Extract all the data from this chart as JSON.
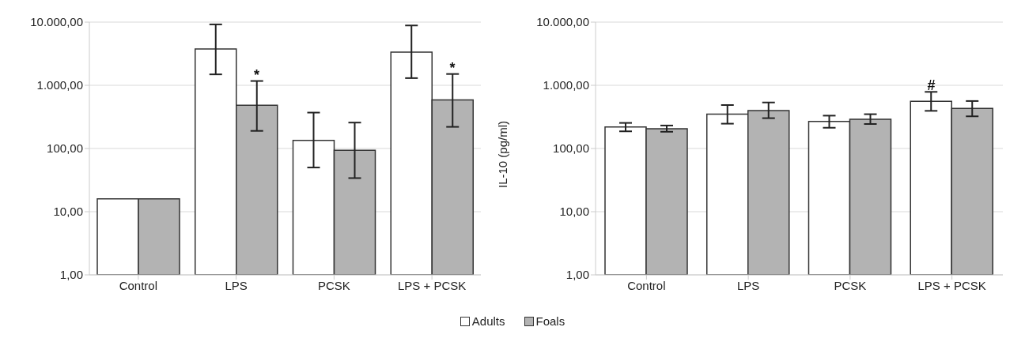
{
  "chart_data": [
    {
      "type": "bar",
      "categories": [
        "Control",
        "LPS",
        "PCSK",
        "LPS + PCSK"
      ],
      "log": "y",
      "grid": "y",
      "legend": "bottom",
      "ylim": [
        1,
        10000
      ],
      "yticks": [
        {
          "value": 1,
          "label": "1,00"
        },
        {
          "value": 10,
          "label": "10,00"
        },
        {
          "value": 100,
          "label": "100,00"
        },
        {
          "value": 1000,
          "label": "1.000,00"
        },
        {
          "value": 10000,
          "label": "10.000,00"
        }
      ],
      "series": [
        {
          "name": "Adults",
          "color": "#ffffff",
          "values": [
            16,
            3750,
            134,
            3360
          ],
          "errors": [
            null,
            [
              1490,
              9200
            ],
            [
              50,
              370
            ],
            [
              1300,
              8850
            ]
          ]
        },
        {
          "name": "Foals",
          "color": "#b3b3b3",
          "values": [
            16,
            483,
            94,
            587
          ],
          "errors": [
            null,
            [
              190,
              1170
            ],
            [
              34,
              257
            ],
            [
              220,
              1510
            ]
          ]
        }
      ],
      "annotations": [
        {
          "text": "*",
          "x": "LPS",
          "y": 483
        },
        {
          "text": "*",
          "x": "LPS + PCSK",
          "y": 587
        }
      ]
    },
    {
      "type": "bar",
      "categories": [
        "Control",
        "LPS",
        "PCSK",
        "LPS + PCSK"
      ],
      "log": "y",
      "grid": "y",
      "ylabel": "IL-10 (pg/ml)",
      "ylim": [
        1,
        10000
      ],
      "yticks": [
        {
          "value": 1,
          "label": "1,00"
        },
        {
          "value": 10,
          "label": "10,00"
        },
        {
          "value": 100,
          "label": "100,00"
        },
        {
          "value": 1000,
          "label": "1.000,00"
        },
        {
          "value": 10000,
          "label": "10.000,00"
        }
      ],
      "series": [
        {
          "color": "#ffffff",
          "values": [
            219,
            349,
            268,
            557
          ],
          "errors": [
            [
              187,
              254
            ],
            [
              247,
              487
            ],
            [
              213,
              331
            ],
            [
              394,
              787
            ]
          ]
        },
        {
          "color": "#b3b3b3",
          "values": [
            205,
            399,
            290,
            432
          ],
          "errors": [
            [
              184,
              231
            ],
            [
              302,
              535
            ],
            [
              244,
              349
            ],
            [
              323,
              564
            ]
          ]
        }
      ],
      "annotations": [
        {
          "text": "#",
          "x": "LPS + PCSK",
          "y": 557
        }
      ]
    }
  ]
}
